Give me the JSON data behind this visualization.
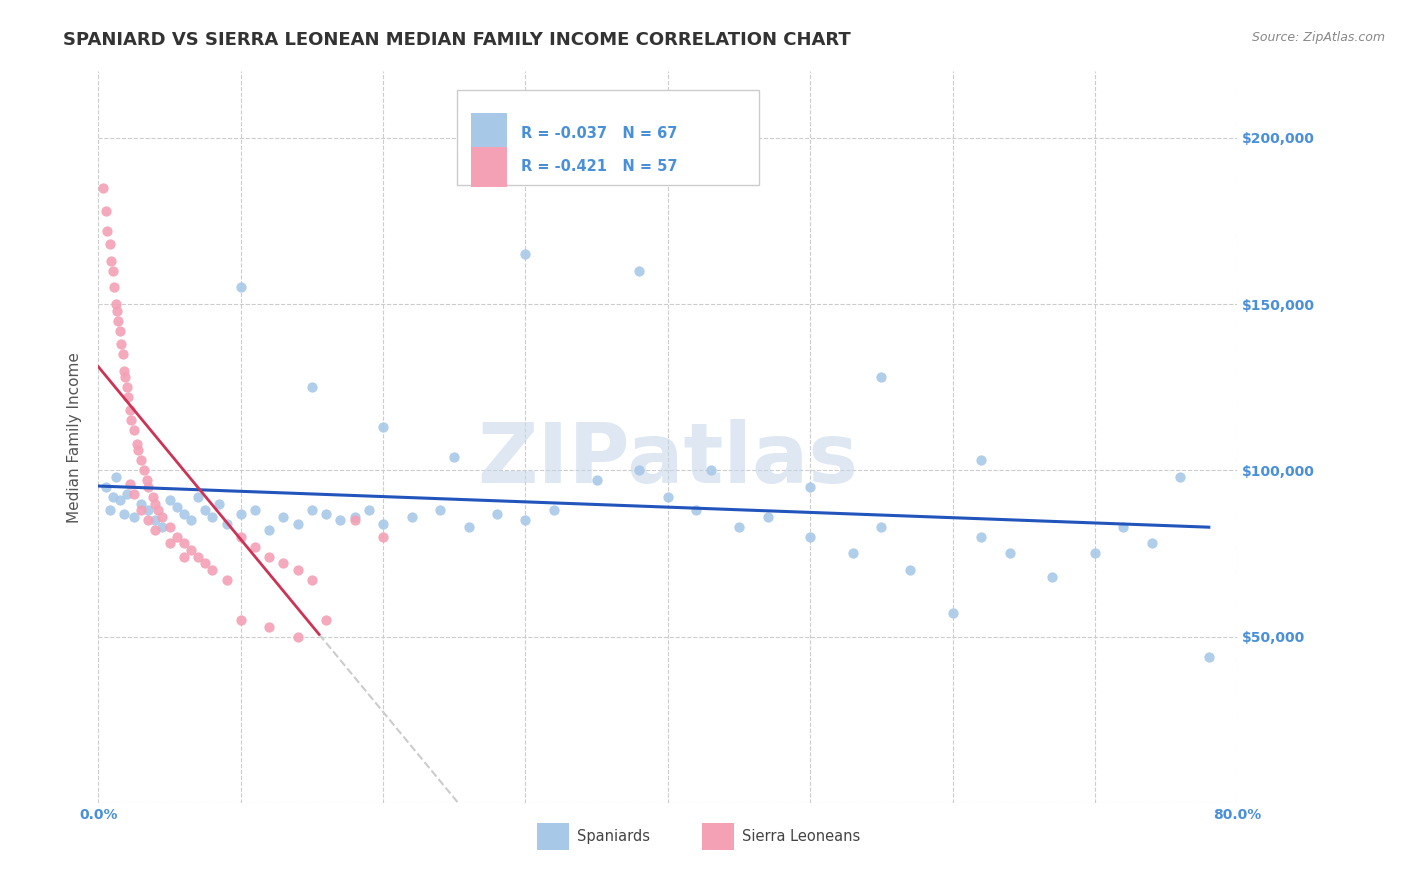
{
  "title": "SPANIARD VS SIERRA LEONEAN MEDIAN FAMILY INCOME CORRELATION CHART",
  "source_text": "Source: ZipAtlas.com",
  "ylabel": "Median Family Income",
  "xlim": [
    0.0,
    0.8
  ],
  "ylim": [
    0,
    220000
  ],
  "yticks": [
    0,
    50000,
    100000,
    150000,
    200000
  ],
  "xticks": [
    0.0,
    0.1,
    0.2,
    0.3,
    0.4,
    0.5,
    0.6,
    0.7,
    0.8
  ],
  "legend_r1": "R = -0.037",
  "legend_n1": "N = 67",
  "legend_r2": "R = -0.421",
  "legend_n2": "N = 57",
  "legend_label1": "Spaniards",
  "legend_label2": "Sierra Leoneans",
  "blue_color": "#a8c8e8",
  "pink_color": "#f4a0b5",
  "line_blue": "#2255bb",
  "line_pink_solid": "#cc3355",
  "line_pink_dash": "#cccccc",
  "axis_color": "#4a90d9",
  "watermark_color": "#c8d8ea",
  "title_fontsize": 13,
  "axis_label_fontsize": 11,
  "tick_fontsize": 10,
  "blue_scatter_x": [
    0.005,
    0.008,
    0.01,
    0.012,
    0.015,
    0.018,
    0.02,
    0.025,
    0.03,
    0.035,
    0.04,
    0.045,
    0.05,
    0.055,
    0.06,
    0.065,
    0.07,
    0.075,
    0.08,
    0.085,
    0.09,
    0.1,
    0.11,
    0.12,
    0.13,
    0.14,
    0.15,
    0.16,
    0.17,
    0.18,
    0.19,
    0.2,
    0.22,
    0.24,
    0.26,
    0.28,
    0.3,
    0.32,
    0.35,
    0.38,
    0.4,
    0.42,
    0.45,
    0.47,
    0.5,
    0.53,
    0.55,
    0.57,
    0.6,
    0.62,
    0.64,
    0.67,
    0.7,
    0.72,
    0.74,
    0.76,
    0.78,
    0.62,
    0.5,
    0.55,
    0.43,
    0.38,
    0.3,
    0.25,
    0.2,
    0.15,
    0.1
  ],
  "blue_scatter_y": [
    95000,
    88000,
    92000,
    98000,
    91000,
    87000,
    93000,
    86000,
    90000,
    88000,
    85000,
    83000,
    91000,
    89000,
    87000,
    85000,
    92000,
    88000,
    86000,
    90000,
    84000,
    87000,
    88000,
    82000,
    86000,
    84000,
    88000,
    87000,
    85000,
    86000,
    88000,
    84000,
    86000,
    88000,
    83000,
    87000,
    85000,
    88000,
    97000,
    100000,
    92000,
    88000,
    83000,
    86000,
    80000,
    75000,
    83000,
    70000,
    57000,
    80000,
    75000,
    68000,
    75000,
    83000,
    78000,
    98000,
    44000,
    103000,
    95000,
    128000,
    100000,
    160000,
    165000,
    104000,
    113000,
    125000,
    155000
  ],
  "pink_scatter_x": [
    0.003,
    0.005,
    0.006,
    0.008,
    0.009,
    0.01,
    0.011,
    0.012,
    0.013,
    0.014,
    0.015,
    0.016,
    0.017,
    0.018,
    0.019,
    0.02,
    0.021,
    0.022,
    0.023,
    0.025,
    0.027,
    0.028,
    0.03,
    0.032,
    0.034,
    0.035,
    0.038,
    0.04,
    0.042,
    0.045,
    0.05,
    0.055,
    0.06,
    0.065,
    0.07,
    0.075,
    0.08,
    0.09,
    0.1,
    0.11,
    0.12,
    0.13,
    0.14,
    0.15,
    0.16,
    0.1,
    0.12,
    0.14,
    0.18,
    0.2,
    0.022,
    0.025,
    0.03,
    0.035,
    0.04,
    0.05,
    0.06
  ],
  "pink_scatter_y": [
    185000,
    178000,
    172000,
    168000,
    163000,
    160000,
    155000,
    150000,
    148000,
    145000,
    142000,
    138000,
    135000,
    130000,
    128000,
    125000,
    122000,
    118000,
    115000,
    112000,
    108000,
    106000,
    103000,
    100000,
    97000,
    95000,
    92000,
    90000,
    88000,
    86000,
    83000,
    80000,
    78000,
    76000,
    74000,
    72000,
    70000,
    67000,
    80000,
    77000,
    74000,
    72000,
    70000,
    67000,
    55000,
    55000,
    53000,
    50000,
    85000,
    80000,
    96000,
    93000,
    88000,
    85000,
    82000,
    78000,
    74000
  ]
}
